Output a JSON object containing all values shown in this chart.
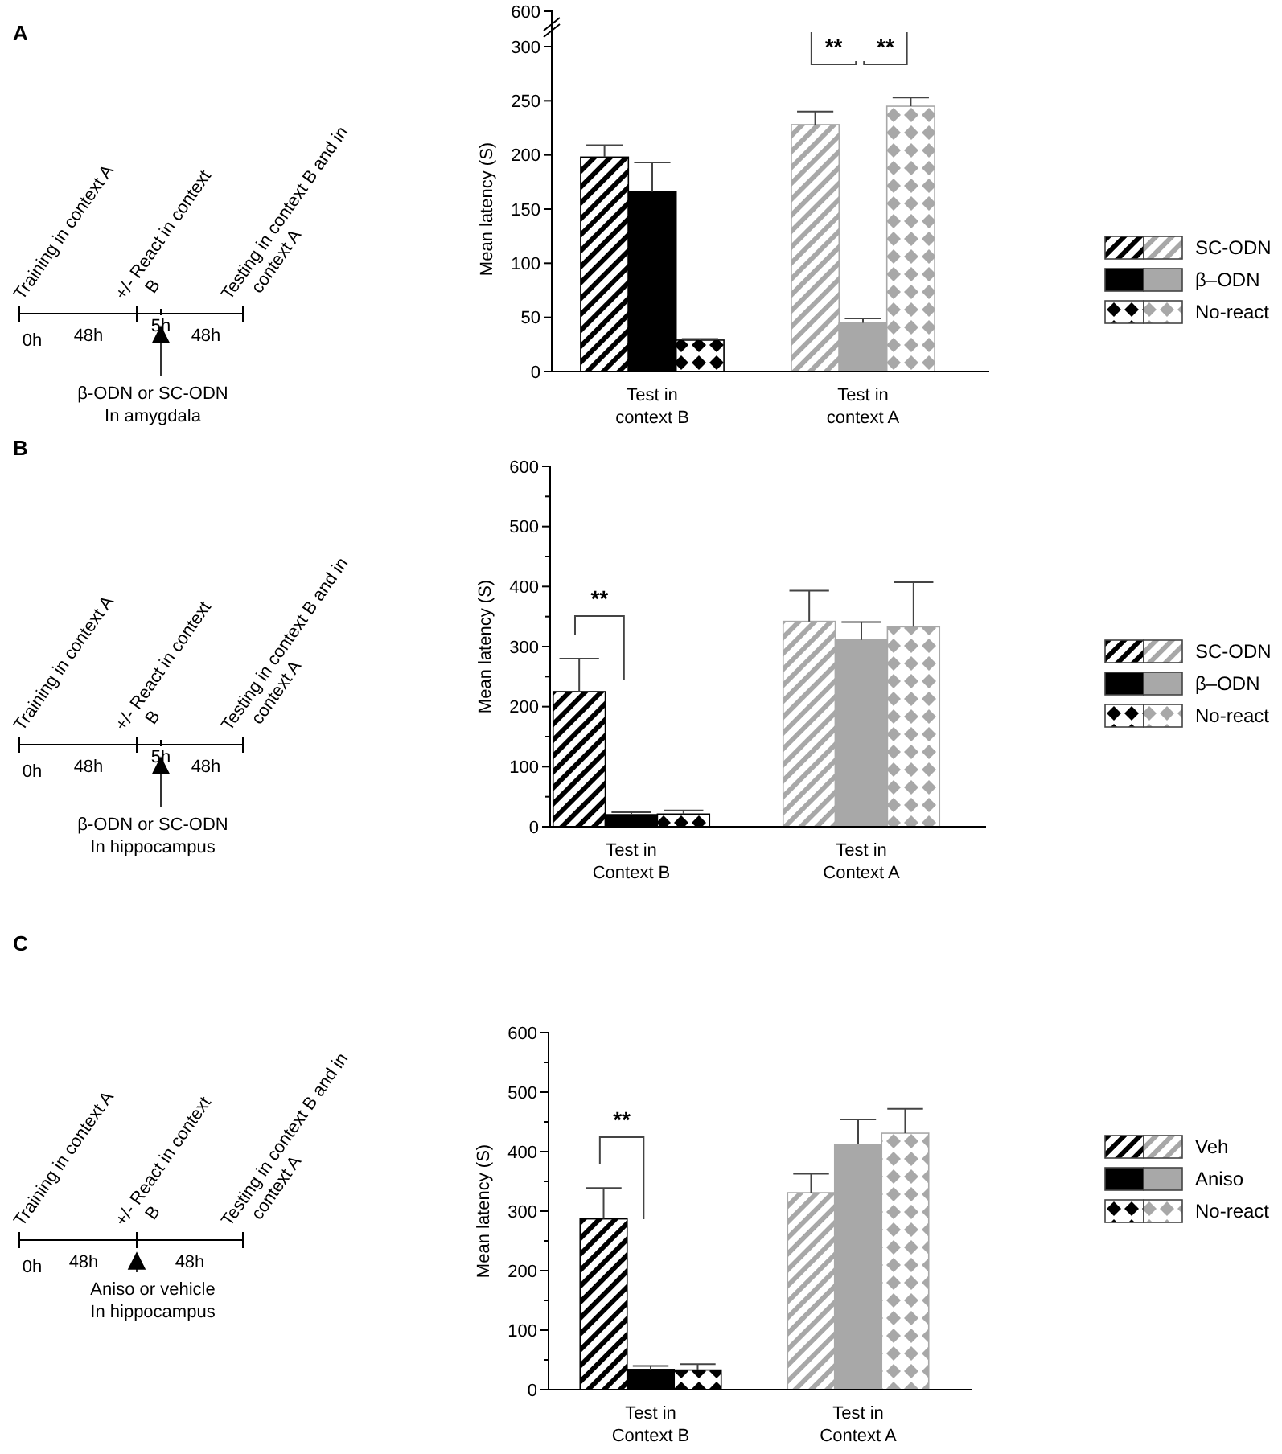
{
  "chart_data": [
    {
      "type": "other",
      "title": "A",
      "annotations": [
        "Training in context A",
        "+/- React in context B",
        "Testing in context B and in context A",
        "0h",
        "48h",
        "5h",
        "48h",
        "β-ODN or SC-ODN",
        "In amygdala"
      ]
    },
    {
      "type": "bar",
      "ylabel": "Mean latency (S)",
      "categories": [
        "Test in context B",
        "Test in context A"
      ],
      "ylim": [
        0,
        300
      ],
      "yticks": [
        0,
        50,
        100,
        150,
        200,
        250,
        300
      ],
      "legend": "right",
      "grid": false,
      "series": [
        {
          "name": "SC-ODN",
          "colors": [
            "#000000",
            "#a8a8a8"
          ],
          "values": [
            198,
            228
          ],
          "errors": [
            11,
            12
          ]
        },
        {
          "name": "β–ODN",
          "colors": [
            "#000000",
            "#a8a8a8"
          ],
          "values": [
            166,
            45
          ],
          "errors": [
            27,
            4
          ]
        },
        {
          "name": "No-react",
          "colors": [
            "#000000",
            "#a8a8a8"
          ],
          "values": [
            29,
            245
          ],
          "errors": [
            1,
            8
          ]
        }
      ],
      "annotations": [
        "600",
        "**",
        "**"
      ]
    },
    {
      "type": "other",
      "title": "B",
      "annotations": [
        "Training in context A",
        "+/- React in context B",
        "Testing in context B and in context A",
        "0h",
        "48h",
        "5h",
        "48h",
        "β-ODN or SC-ODN",
        "In hippocampus"
      ]
    },
    {
      "type": "bar",
      "ylabel": "Mean latency (S)",
      "categories": [
        "Test in Context B",
        "Test in Context A"
      ],
      "ylim": [
        0,
        600
      ],
      "yticks": [
        0,
        {
          "value": 50,
          "label": null
        },
        100,
        {
          "value": 150,
          "label": null
        },
        200,
        {
          "value": 250,
          "label": null
        },
        300,
        {
          "value": 350,
          "label": null
        },
        400,
        {
          "value": 450,
          "label": null
        },
        500,
        {
          "value": 550,
          "label": null
        },
        600
      ],
      "legend": "right",
      "grid": false,
      "series": [
        {
          "name": "SC-ODN",
          "colors": [
            "#000000",
            "#a8a8a8"
          ],
          "values": [
            225,
            342
          ],
          "errors": [
            55,
            51
          ]
        },
        {
          "name": "β–ODN",
          "colors": [
            "#000000",
            "#a8a8a8"
          ],
          "values": [
            20,
            311
          ],
          "errors": [
            4,
            30
          ]
        },
        {
          "name": "No-react",
          "colors": [
            "#000000",
            "#a8a8a8"
          ],
          "values": [
            21,
            333
          ],
          "errors": [
            6,
            74
          ]
        }
      ],
      "annotations": [
        "**"
      ]
    },
    {
      "type": "other",
      "title": "C",
      "annotations": [
        "Training in context A",
        "+/- React in context B",
        "Testing in context B and in context A",
        "0h",
        "48h",
        "48h",
        "Aniso or vehicle",
        "In hippocampus"
      ]
    },
    {
      "type": "bar",
      "ylabel": "Mean latency (S)",
      "categories": [
        "Test in Context B",
        "Test in Context A"
      ],
      "ylim": [
        0,
        600
      ],
      "yticks": [
        0,
        {
          "value": 50,
          "label": null
        },
        100,
        {
          "value": 150,
          "label": null
        },
        200,
        {
          "value": 250,
          "label": null
        },
        300,
        {
          "value": 350,
          "label": null
        },
        400,
        {
          "value": 450,
          "label": null
        },
        500,
        {
          "value": 550,
          "label": null
        },
        600
      ],
      "legend": "right",
      "grid": false,
      "series": [
        {
          "name": "Veh",
          "colors": [
            "#000000",
            "#a8a8a8"
          ],
          "values": [
            287,
            331
          ],
          "errors": [
            52,
            32
          ]
        },
        {
          "name": "Aniso",
          "colors": [
            "#000000",
            "#a8a8a8"
          ],
          "values": [
            34,
            412
          ],
          "errors": [
            6,
            42
          ]
        },
        {
          "name": "No-react",
          "colors": [
            "#000000",
            "#a8a8a8"
          ],
          "values": [
            33,
            431
          ],
          "errors": [
            10,
            41
          ]
        }
      ],
      "annotations": [
        "**"
      ]
    }
  ]
}
